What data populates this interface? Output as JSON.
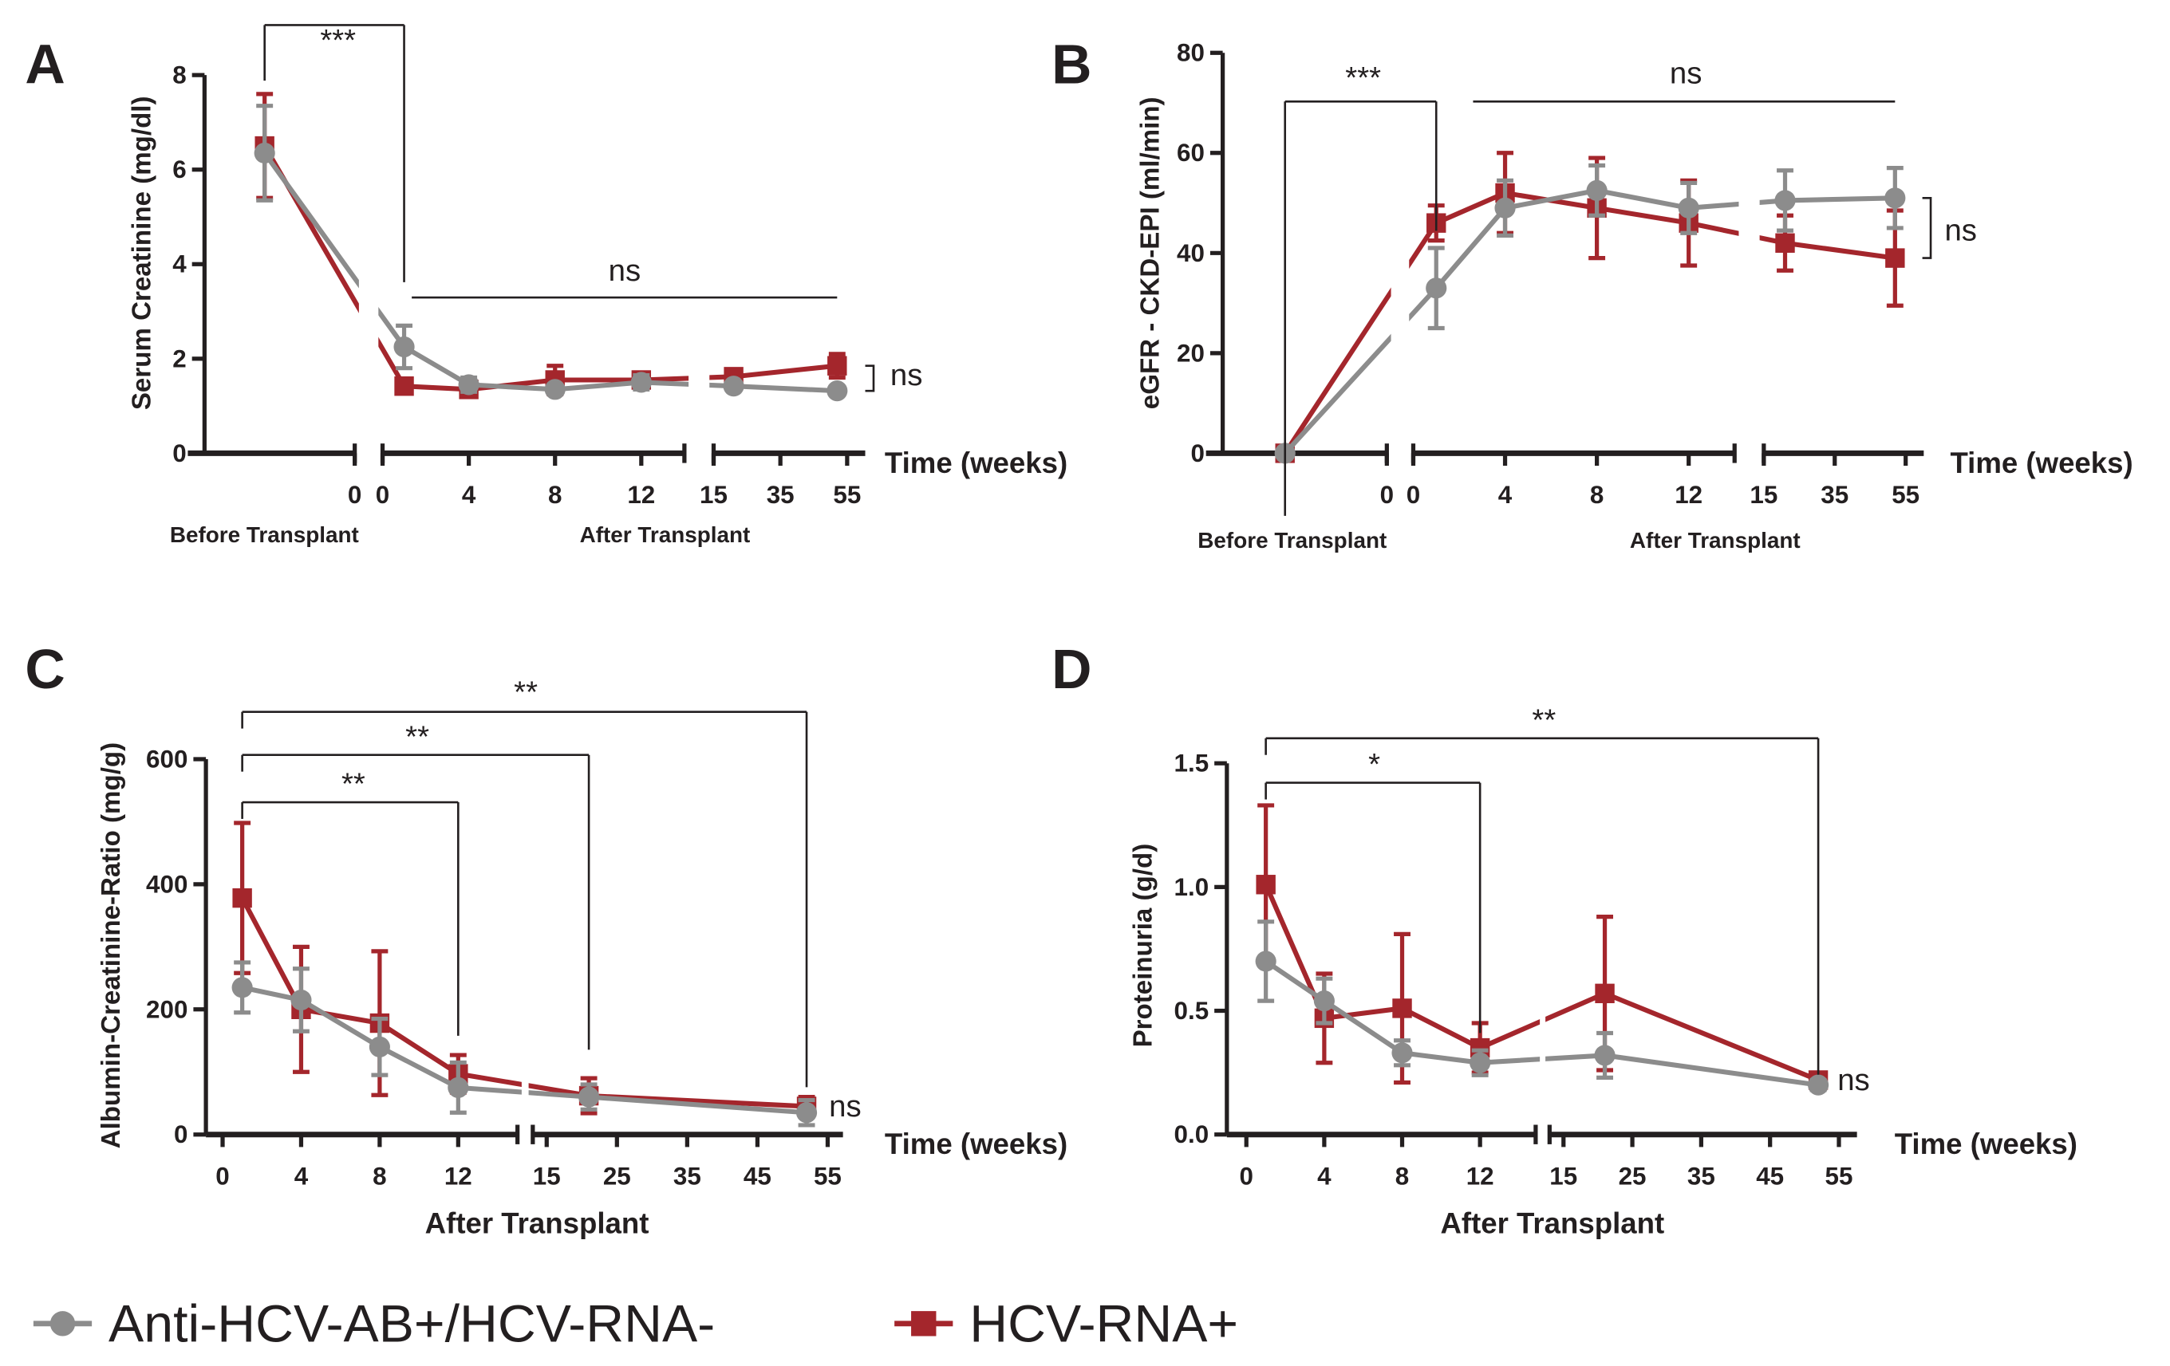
{
  "colors": {
    "group1": "#8c8c8c",
    "group2": "#a4262c",
    "axis": "#231f20"
  },
  "legend": [
    {
      "label": "Anti-HCV-AB+/HCV-RNA-",
      "marker": "circle",
      "color": "#8c8c8c"
    },
    {
      "label": "HCV-RNA+",
      "marker": "square",
      "color": "#a4262c"
    }
  ],
  "chart_data": [
    {
      "panel": "A",
      "type": "line",
      "ylabel": "Serum Creatinine (mg/dl)",
      "xlabel": "Time (weeks)",
      "ylim": [
        0,
        8
      ],
      "yticks": [
        0,
        2,
        4,
        6,
        8
      ],
      "x_segments": [
        {
          "range": [
            -1,
            0
          ],
          "ticks": [
            0
          ]
        },
        {
          "range": [
            0,
            14
          ],
          "ticks": [
            0,
            4,
            8,
            12
          ]
        },
        {
          "range": [
            15,
            55
          ],
          "ticks": [
            15,
            35,
            55
          ]
        }
      ],
      "group_labels": [
        "Before Transplant",
        "After Transplant"
      ],
      "x": [
        "pre",
        1,
        4,
        8,
        12,
        21,
        52
      ],
      "series": [
        {
          "name": "HCV-RNA+",
          "values": [
            6.5,
            1.42,
            1.35,
            1.55,
            1.55,
            1.62,
            1.85
          ],
          "err": [
            1.1,
            0.1,
            0.1,
            0.3,
            0.12,
            0.12,
            0.25
          ]
        },
        {
          "name": "Anti-HCV-AB+/HCV-RNA-",
          "values": [
            6.35,
            2.25,
            1.45,
            1.35,
            1.5,
            1.42,
            1.32
          ],
          "err": [
            1.0,
            0.45,
            0.15,
            0.08,
            0.15,
            0.08,
            0.08
          ]
        }
      ],
      "annotations": [
        {
          "text": "***",
          "from": "pre",
          "to": 1
        },
        {
          "text": "ns",
          "from": 1,
          "to": 52
        },
        {
          "text": "ns",
          "between_groups_at": 52
        }
      ]
    },
    {
      "panel": "B",
      "type": "line",
      "ylabel": "eGFR - CKD-EPI (ml/min)",
      "xlabel": "Time (weeks)",
      "ylim": [
        0,
        80
      ],
      "yticks": [
        0,
        20,
        40,
        60,
        80
      ],
      "x_segments": [
        {
          "range": [
            -1,
            0
          ],
          "ticks": [
            0
          ]
        },
        {
          "range": [
            0,
            14
          ],
          "ticks": [
            0,
            4,
            8,
            12
          ]
        },
        {
          "range": [
            15,
            55
          ],
          "ticks": [
            15,
            35,
            55
          ]
        }
      ],
      "group_labels": [
        "Before Transplant",
        "After Transplant"
      ],
      "x": [
        "pre",
        1,
        4,
        8,
        12,
        21,
        52
      ],
      "series": [
        {
          "name": "HCV-RNA+",
          "values": [
            0,
            46,
            52,
            49,
            46,
            42,
            39
          ],
          "err": [
            0.5,
            3.5,
            8,
            10,
            8.5,
            5.5,
            9.5
          ]
        },
        {
          "name": "Anti-HCV-AB+/HCV-RNA-",
          "values": [
            0,
            33,
            49,
            52.5,
            49,
            50.5,
            51
          ],
          "err": [
            0.5,
            8,
            5.5,
            5,
            5,
            6,
            6
          ]
        }
      ],
      "annotations": [
        {
          "text": "***",
          "from": "pre",
          "to": 1
        },
        {
          "text": "ns",
          "from": 1,
          "to": 52
        },
        {
          "text": "ns",
          "between_groups_at": 52
        }
      ]
    },
    {
      "panel": "C",
      "type": "line",
      "ylabel": "Albumin-Creatinine-Ratio (mg/g)",
      "xlabel": "Time (weeks)",
      "ylim": [
        0,
        600
      ],
      "yticks": [
        0,
        200,
        400,
        600
      ],
      "x_segments": [
        {
          "range": [
            0,
            14
          ],
          "ticks": [
            0,
            4,
            8,
            12
          ]
        },
        {
          "range": [
            15,
            55
          ],
          "ticks": [
            15,
            25,
            35,
            45,
            55
          ]
        }
      ],
      "group_labels": [
        "After Transplant"
      ],
      "x": [
        1,
        4,
        8,
        12,
        21,
        52
      ],
      "series": [
        {
          "name": "HCV-RNA+",
          "values": [
            378,
            200,
            178,
            97,
            62,
            45
          ],
          "err": [
            120,
            100,
            115,
            30,
            28,
            15
          ]
        },
        {
          "name": "Anti-HCV-AB+/HCV-RNA-",
          "values": [
            235,
            215,
            140,
            75,
            60,
            35
          ],
          "err": [
            40,
            50,
            45,
            40,
            20,
            20
          ]
        }
      ],
      "annotations": [
        {
          "text": "**",
          "from": 1,
          "to": 52
        },
        {
          "text": "**",
          "from": 1,
          "to": 21
        },
        {
          "text": "**",
          "from": 1,
          "to": 12
        },
        {
          "text": "ns",
          "between_groups_at": 52
        }
      ]
    },
    {
      "panel": "D",
      "type": "line",
      "ylabel": "Proteinuria (g/d)",
      "xlabel": "Time (weeks)",
      "ylim": [
        0,
        1.5
      ],
      "yticks": [
        0.0,
        0.5,
        1.0,
        1.5
      ],
      "ytick_labels": [
        "0.0",
        "0.5",
        "1.0",
        "1.5"
      ],
      "x_segments": [
        {
          "range": [
            0,
            14
          ],
          "ticks": [
            0,
            4,
            8,
            12
          ]
        },
        {
          "range": [
            15,
            55
          ],
          "ticks": [
            15,
            25,
            35,
            45,
            55
          ]
        }
      ],
      "group_labels": [
        "After Transplant"
      ],
      "x": [
        1,
        4,
        8,
        12,
        21,
        52
      ],
      "series": [
        {
          "name": "HCV-RNA+",
          "values": [
            1.01,
            0.47,
            0.51,
            0.35,
            0.57,
            0.22
          ],
          "err": [
            0.32,
            0.18,
            0.3,
            0.1,
            0.31,
            0.02
          ]
        },
        {
          "name": "Anti-HCV-AB+/HCV-RNA-",
          "values": [
            0.7,
            0.54,
            0.33,
            0.29,
            0.32,
            0.2
          ],
          "err": [
            0.16,
            0.09,
            0.05,
            0.05,
            0.09,
            0.02
          ]
        }
      ],
      "annotations": [
        {
          "text": "**",
          "from": 1,
          "to": 52
        },
        {
          "text": "*",
          "from": 1,
          "to": 12
        },
        {
          "text": "ns",
          "between_groups_at": 52
        }
      ]
    }
  ]
}
